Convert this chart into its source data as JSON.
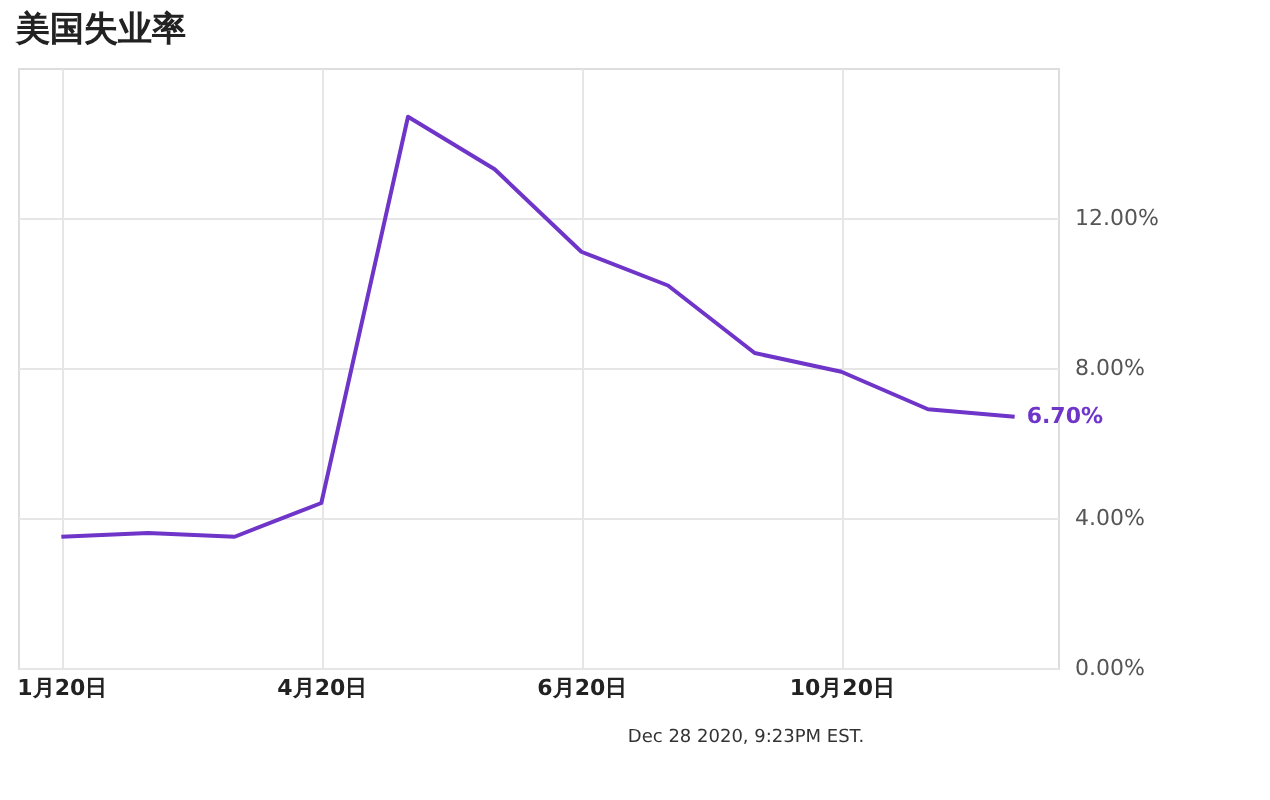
{
  "chart_data": {
    "type": "line",
    "title": "美国失业率",
    "categories": [
      "1月20日",
      null,
      null,
      "4月20日",
      null,
      null,
      "6月20日",
      null,
      null,
      "10月20日",
      null,
      null
    ],
    "series": [
      {
        "color": "#6f35c9",
        "values": [
          3.5,
          3.6,
          3.5,
          4.4,
          14.7,
          13.3,
          11.1,
          10.2,
          8.4,
          7.9,
          6.9,
          6.7
        ],
        "value_labels": [
          null,
          null,
          null,
          null,
          null,
          null,
          null,
          null,
          null,
          null,
          null,
          "6.70%"
        ]
      }
    ],
    "ylim": [
      0,
      16
    ],
    "yticks": [
      {
        "value": 0,
        "label": "0.00%"
      },
      {
        "value": 4,
        "label": "4.00%"
      },
      {
        "value": 8,
        "label": "8.00%"
      },
      {
        "value": 12,
        "label": "12.00%"
      }
    ],
    "grid": true,
    "legend": false,
    "marker": "none",
    "line_style": "solid",
    "annotations": [
      "Dec 28 2020, 9:23PM EST."
    ]
  }
}
